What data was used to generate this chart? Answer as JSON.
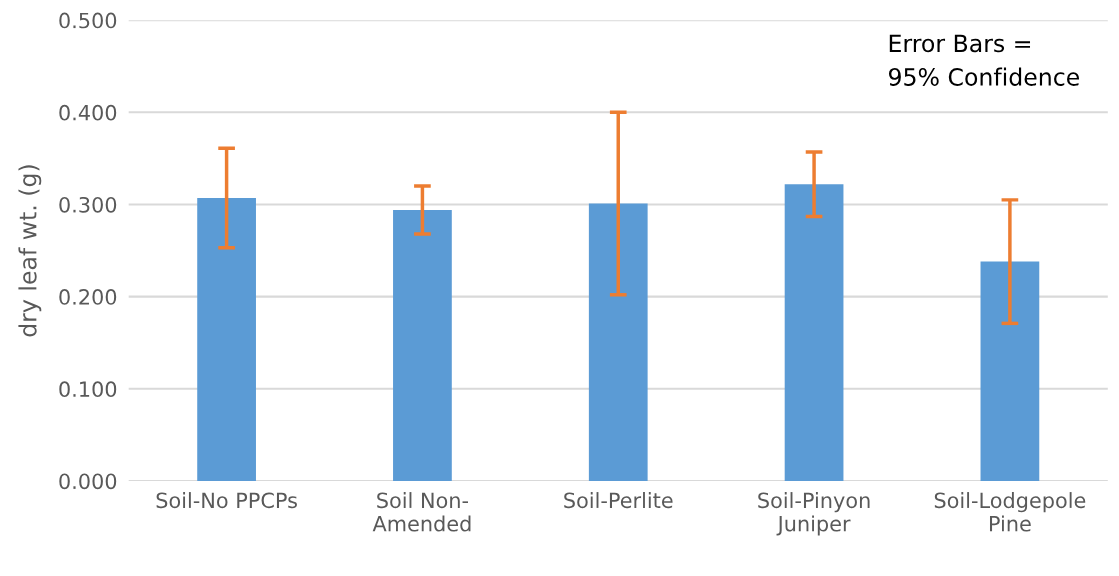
{
  "chart_data": {
    "type": "bar",
    "ylabel": "dry leaf wt. (g)",
    "categories": [
      "Soil-No PPCPs",
      "Soil Non-\nAmended",
      "Soil-Perlite",
      "Soil-Pinyon\nJuniper",
      "Soil-Lodgepole\nPine"
    ],
    "values": [
      0.307,
      0.294,
      0.301,
      0.322,
      0.238
    ],
    "errors": [
      0.054,
      0.026,
      0.099,
      0.035,
      0.067
    ],
    "color": "#5b9bd5",
    "ylim": [
      0,
      0.5
    ],
    "yticks": [
      {
        "value": 0,
        "label": "0.000"
      },
      {
        "value": 0.1,
        "label": "0.100"
      },
      {
        "value": 0.2,
        "label": "0.200"
      },
      {
        "value": 0.3,
        "label": "0.300"
      },
      {
        "value": 0.4,
        "label": "0.400"
      },
      {
        "value": 0.5,
        "label": "0.500"
      }
    ],
    "grid": "y",
    "annotations": [
      "Error Bars =\n95% Confidence"
    ]
  }
}
